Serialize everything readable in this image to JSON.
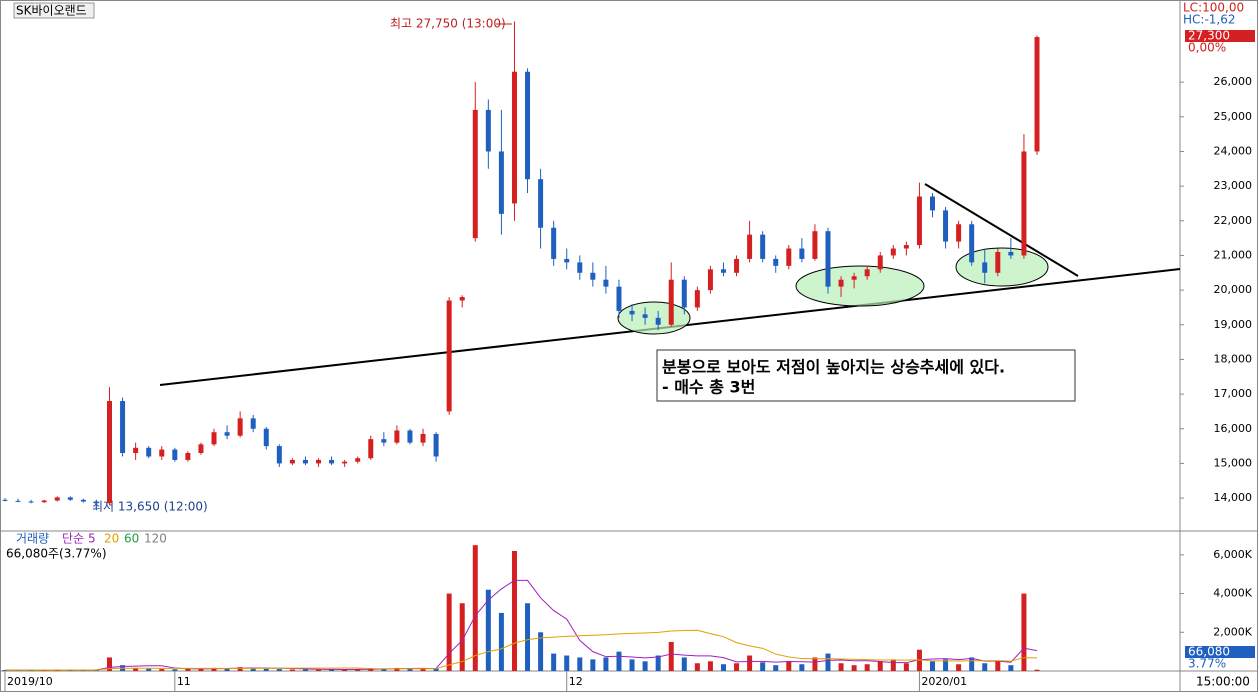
{
  "chart_data": {
    "type": "candlestick",
    "title": "SK바이오랜드",
    "categories": [
      "2019/10",
      null,
      null,
      null,
      null,
      null,
      null,
      null,
      null,
      null,
      null,
      null,
      null,
      "11",
      null,
      null,
      null,
      null,
      null,
      null,
      null,
      null,
      null,
      null,
      null,
      null,
      null,
      null,
      null,
      null,
      null,
      null,
      null,
      null,
      null,
      null,
      null,
      null,
      null,
      null,
      null,
      null,
      null,
      "12",
      null,
      null,
      null,
      null,
      null,
      null,
      null,
      null,
      null,
      null,
      null,
      null,
      null,
      null,
      null,
      null,
      null,
      null,
      null,
      null,
      null,
      null,
      null,
      null,
      null,
      null,
      "2020/01",
      null,
      null,
      null,
      null,
      null,
      null,
      null,
      null,
      null
    ],
    "ohlc": [
      [
        13950,
        14000,
        13900,
        13920
      ],
      [
        13920,
        13980,
        13880,
        13900
      ],
      [
        13900,
        13950,
        13850,
        13880
      ],
      [
        13880,
        13950,
        13860,
        13930
      ],
      [
        13930,
        14050,
        13900,
        14020
      ],
      [
        14020,
        14050,
        13920,
        13950
      ],
      [
        13950,
        13980,
        13870,
        13900
      ],
      [
        13900,
        13950,
        13650,
        13850
      ],
      [
        13850,
        17200,
        13800,
        16800
      ],
      [
        16800,
        16900,
        15200,
        15300
      ],
      [
        15300,
        15600,
        15100,
        15450
      ],
      [
        15450,
        15500,
        15150,
        15200
      ],
      [
        15200,
        15500,
        15100,
        15400
      ],
      [
        15400,
        15450,
        15050,
        15100
      ],
      [
        15100,
        15350,
        15050,
        15300
      ],
      [
        15300,
        15600,
        15250,
        15550
      ],
      [
        15550,
        16000,
        15500,
        15900
      ],
      [
        15900,
        16100,
        15700,
        15800
      ],
      [
        15800,
        16500,
        15750,
        16300
      ],
      [
        16300,
        16400,
        15900,
        16000
      ],
      [
        16000,
        16050,
        15400,
        15500
      ],
      [
        15500,
        15550,
        14900,
        15000
      ],
      [
        15000,
        15150,
        14950,
        15100
      ],
      [
        15100,
        15200,
        14950,
        15000
      ],
      [
        15000,
        15150,
        14900,
        15100
      ],
      [
        15100,
        15200,
        14950,
        15000
      ],
      [
        15000,
        15100,
        14900,
        15050
      ],
      [
        15050,
        15200,
        15000,
        15150
      ],
      [
        15150,
        15800,
        15100,
        15700
      ],
      [
        15700,
        15900,
        15500,
        15600
      ],
      [
        15600,
        16100,
        15550,
        15950
      ],
      [
        15950,
        16000,
        15550,
        15600
      ],
      [
        15600,
        16000,
        15500,
        15850
      ],
      [
        15850,
        15900,
        15050,
        15200
      ],
      [
        16500,
        19800,
        16400,
        19700
      ],
      [
        19700,
        19850,
        19500,
        19800
      ],
      [
        21500,
        26000,
        21400,
        25200
      ],
      [
        25200,
        25500,
        23500,
        24000
      ],
      [
        24000,
        25200,
        21600,
        22200
      ],
      [
        22500,
        27750,
        22000,
        26300
      ],
      [
        26300,
        26400,
        22800,
        23200
      ],
      [
        23200,
        23500,
        21200,
        21800
      ],
      [
        21800,
        22000,
        20700,
        20900
      ],
      [
        20900,
        21200,
        20600,
        20800
      ],
      [
        20800,
        21000,
        20300,
        20500
      ],
      [
        20500,
        20800,
        20100,
        20300
      ],
      [
        20300,
        20700,
        19900,
        20100
      ],
      [
        20100,
        20300,
        19200,
        19400
      ],
      [
        19400,
        19600,
        19100,
        19300
      ],
      [
        19300,
        19500,
        19000,
        19200
      ],
      [
        19200,
        19400,
        18850,
        19000
      ],
      [
        19000,
        20800,
        18950,
        20300
      ],
      [
        20300,
        20400,
        19300,
        19500
      ],
      [
        19500,
        20100,
        19400,
        20000
      ],
      [
        20000,
        20700,
        19900,
        20600
      ],
      [
        20600,
        20800,
        20400,
        20500
      ],
      [
        20500,
        21000,
        20400,
        20900
      ],
      [
        20900,
        22000,
        20800,
        21600
      ],
      [
        21600,
        21700,
        20800,
        20900
      ],
      [
        20900,
        21000,
        20500,
        20700
      ],
      [
        20700,
        21300,
        20600,
        21200
      ],
      [
        21200,
        21500,
        20800,
        20900
      ],
      [
        20900,
        21900,
        20850,
        21700
      ],
      [
        21700,
        21800,
        19900,
        20100
      ],
      [
        20100,
        20400,
        19800,
        20300
      ],
      [
        20300,
        20500,
        20050,
        20400
      ],
      [
        20400,
        20700,
        20300,
        20600
      ],
      [
        20600,
        21100,
        20500,
        21000
      ],
      [
        21000,
        21300,
        20900,
        21200
      ],
      [
        21200,
        21400,
        21000,
        21300
      ],
      [
        21300,
        23100,
        21200,
        22700
      ],
      [
        22700,
        22800,
        22100,
        22300
      ],
      [
        22300,
        22400,
        21200,
        21400
      ],
      [
        21400,
        22000,
        21200,
        21900
      ],
      [
        21900,
        22000,
        20700,
        20800
      ],
      [
        20800,
        21200,
        20200,
        20500
      ],
      [
        20500,
        21200,
        20400,
        21100
      ],
      [
        21100,
        21500,
        20900,
        21000
      ],
      [
        21000,
        24500,
        20900,
        24000
      ],
      [
        24000,
        27350,
        23900,
        27300
      ]
    ],
    "up_color": "#d42020",
    "down_color": "#1f5fbf",
    "ylim": [
      13050,
      28370
    ],
    "yticks": [
      {
        "value": 14000,
        "label": "14,000"
      },
      {
        "value": 15000,
        "label": "15,000"
      },
      {
        "value": 16000,
        "label": "16,000"
      },
      {
        "value": 17000,
        "label": "17,000"
      },
      {
        "value": 18000,
        "label": "18,000"
      },
      {
        "value": 19000,
        "label": "19,000"
      },
      {
        "value": 20000,
        "label": "20,000"
      },
      {
        "value": 21000,
        "label": "21,000"
      },
      {
        "value": 22000,
        "label": "22,000"
      },
      {
        "value": 23000,
        "label": "23,000"
      },
      {
        "value": 24000,
        "label": "24,000"
      },
      {
        "value": 25000,
        "label": "25,000"
      },
      {
        "value": 26000,
        "label": "26,000"
      }
    ],
    "annotations": {
      "high": "최고 27,750 (13:00)",
      "low": "최저 13,650 (12:00)",
      "note_line1": "분봉으로 보아도 저점이 높아지는 상승추세에 있다.",
      "note_line2": "- 매수 총 3번"
    },
    "lc": "LC:100,00",
    "hc": "HC:-1,62",
    "last_price": "27,300",
    "change": "0,00%",
    "volume": {
      "title": "거래량",
      "ma_label": "단순",
      "ma_periods": [
        "5",
        "20",
        "60",
        "120"
      ],
      "ma_colors": [
        "#a020c0",
        "#e0a000",
        "#20a040",
        "#808080"
      ],
      "summary": "66,080주(3.77%)",
      "last": "66,080",
      "last_pct": "3.77%",
      "values": [
        50,
        40,
        60,
        45,
        55,
        50,
        40,
        80,
        700,
        300,
        150,
        120,
        100,
        90,
        110,
        130,
        160,
        140,
        200,
        150,
        120,
        100,
        80,
        90,
        70,
        80,
        75,
        90,
        150,
        120,
        160,
        110,
        130,
        140,
        4000,
        3500,
        6500,
        4200,
        3000,
        6200,
        3500,
        2000,
        900,
        800,
        700,
        600,
        700,
        1000,
        600,
        500,
        800,
        1500,
        700,
        400,
        500,
        350,
        400,
        800,
        450,
        300,
        500,
        350,
        700,
        900,
        400,
        300,
        350,
        500,
        600,
        400,
        1100,
        500,
        600,
        350,
        700,
        400,
        500,
        300,
        4000,
        66.08
      ],
      "ylim": [
        0,
        7180
      ],
      "yticks": [
        {
          "value": 2000,
          "label": "2,000K"
        },
        {
          "value": 4000,
          "label": "4,000K"
        },
        {
          "value": 6000,
          "label": "6,000K"
        }
      ]
    },
    "time_label": "15:00:00"
  }
}
